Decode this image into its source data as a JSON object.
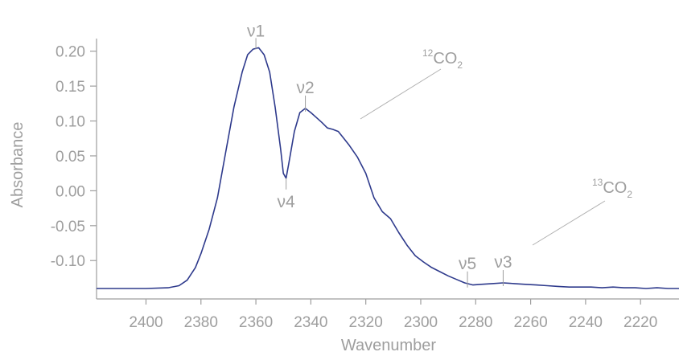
{
  "chart_data": {
    "type": "line",
    "xlabel": "Wavenumber",
    "ylabel": "Absorbance",
    "xlim": [
      2418,
      2206
    ],
    "ylim": [
      -0.155,
      0.225
    ],
    "x_reversed": true,
    "grid": false,
    "x_ticks": [
      {
        "value": 2400,
        "label": "2400"
      },
      {
        "value": 2380,
        "label": "2380"
      },
      {
        "value": 2360,
        "label": "2360"
      },
      {
        "value": 2340,
        "label": "2340"
      },
      {
        "value": 2320,
        "label": "2320"
      },
      {
        "value": 2300,
        "label": "2300"
      },
      {
        "value": 2280,
        "label": "2280"
      },
      {
        "value": 2260,
        "label": "2260"
      },
      {
        "value": 2240,
        "label": "2240"
      },
      {
        "value": 2220,
        "label": "2220"
      }
    ],
    "y_ticks": [
      {
        "value": 0.2,
        "label": "0.20"
      },
      {
        "value": 0.15,
        "label": "0.15"
      },
      {
        "value": 0.1,
        "label": "0.10"
      },
      {
        "value": 0.05,
        "label": "0.05"
      },
      {
        "value": 0.0,
        "label": "0.00"
      },
      {
        "value": -0.05,
        "label": "-0.05"
      },
      {
        "value": -0.1,
        "label": "-0.10"
      }
    ],
    "line_color": "#2e3a8c",
    "series": [
      {
        "x": [
          2418,
          2410,
          2400,
          2392,
          2388,
          2385,
          2382,
          2380,
          2377,
          2374,
          2371,
          2368,
          2365,
          2363,
          2361,
          2359,
          2357,
          2355,
          2353,
          2351,
          2350,
          2349,
          2348,
          2346,
          2344,
          2342,
          2340,
          2338,
          2336,
          2334,
          2332,
          2330,
          2328,
          2326,
          2323,
          2320,
          2317,
          2314,
          2311,
          2308,
          2305,
          2302,
          2299,
          2296,
          2293,
          2290,
          2287,
          2284,
          2281,
          2278,
          2274,
          2270,
          2266,
          2262,
          2258,
          2254,
          2250,
          2246,
          2242,
          2238,
          2234,
          2230,
          2226,
          2222,
          2218,
          2214,
          2210,
          2206
        ],
        "y": [
          -0.14,
          -0.14,
          -0.14,
          -0.139,
          -0.136,
          -0.128,
          -0.11,
          -0.09,
          -0.055,
          -0.01,
          0.055,
          0.12,
          0.17,
          0.195,
          0.203,
          0.205,
          0.195,
          0.17,
          0.12,
          0.06,
          0.025,
          0.018,
          0.04,
          0.085,
          0.112,
          0.118,
          0.112,
          0.105,
          0.098,
          0.09,
          0.088,
          0.085,
          0.075,
          0.065,
          0.048,
          0.025,
          -0.01,
          -0.03,
          -0.04,
          -0.06,
          -0.078,
          -0.093,
          -0.102,
          -0.11,
          -0.116,
          -0.122,
          -0.127,
          -0.132,
          -0.135,
          -0.134,
          -0.133,
          -0.132,
          -0.133,
          -0.134,
          -0.135,
          -0.136,
          -0.137,
          -0.138,
          -0.138,
          -0.138,
          -0.139,
          -0.138,
          -0.139,
          -0.139,
          -0.14,
          -0.139,
          -0.14,
          -0.14
        ]
      }
    ],
    "annotations": [
      {
        "id": "v1",
        "label": "ν1",
        "x": 2360,
        "y": 0.205
      },
      {
        "id": "v2",
        "label": "ν2",
        "x": 2342,
        "y": 0.118
      },
      {
        "id": "v4",
        "label": "ν4",
        "x": 2349,
        "y": 0.018
      },
      {
        "id": "v5",
        "label": "ν5",
        "x": 2283,
        "y": -0.134
      },
      {
        "id": "v3",
        "label": "ν3",
        "x": 2270,
        "y": -0.132
      }
    ],
    "species_labels": [
      {
        "id": "co2-12",
        "sup": "12",
        "base": "CO",
        "sub": "2"
      },
      {
        "id": "co2-13",
        "sup": "13",
        "base": "CO",
        "sub": "2"
      }
    ]
  }
}
